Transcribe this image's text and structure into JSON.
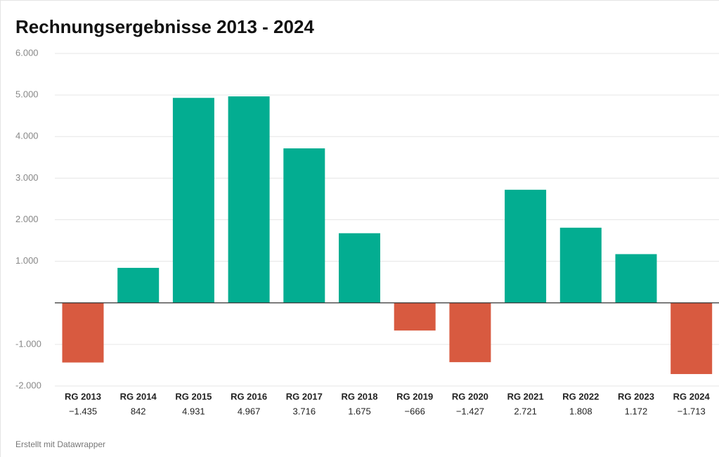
{
  "chart_data": {
    "type": "bar",
    "title": "Rechnungsergebnisse 2013 - 2024",
    "categories": [
      "RG 2013",
      "RG 2014",
      "RG 2015",
      "RG 2016",
      "RG 2017",
      "RG 2018",
      "RG 2019",
      "RG 2020",
      "RG 2021",
      "RG 2022",
      "RG 2023",
      "RG 2024"
    ],
    "values": [
      -1435,
      842,
      4931,
      4967,
      3716,
      1675,
      -666,
      -1427,
      2721,
      1808,
      1172,
      -1713
    ],
    "value_labels": [
      "−1.435",
      "842",
      "4.931",
      "4.967",
      "3.716",
      "1.675",
      "−666",
      "−1.427",
      "2.721",
      "1.808",
      "1.172",
      "−1.713"
    ],
    "positive_color": "#03ad91",
    "negative_color": "#d85a40",
    "ylim": [
      -2000,
      6000
    ],
    "yticks": [
      {
        "value": -2000,
        "label": "-2.000"
      },
      {
        "value": -1000,
        "label": "-1.000"
      },
      {
        "value": 1000,
        "label": "1.000"
      },
      {
        "value": 2000,
        "label": "2.000"
      },
      {
        "value": 3000,
        "label": "3.000"
      },
      {
        "value": 4000,
        "label": "4.000"
      },
      {
        "value": 5000,
        "label": "5.000"
      },
      {
        "value": 6000,
        "label": "6.000"
      }
    ],
    "grid": true,
    "footer": "Erstellt mit Datawrapper"
  }
}
